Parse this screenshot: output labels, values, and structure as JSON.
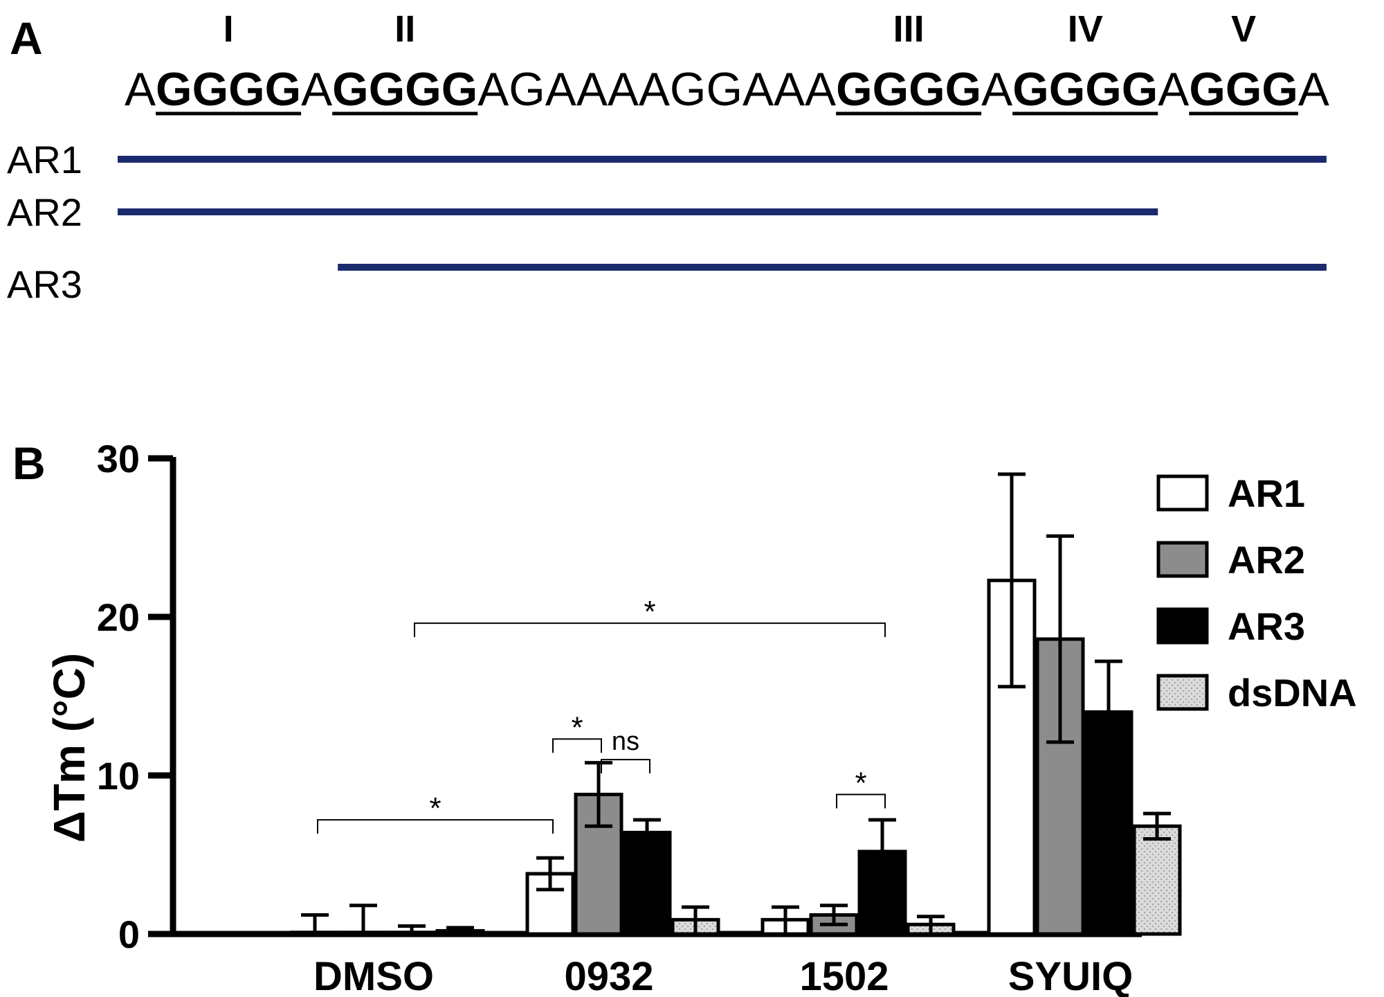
{
  "panel_a": {
    "label": "A",
    "roman_labels": [
      "I",
      "II",
      "III",
      "IV",
      "V"
    ],
    "sequence_segments": [
      {
        "text": "A",
        "bold": false
      },
      {
        "text": "GGGG",
        "bold": true
      },
      {
        "text": "A",
        "bold": false
      },
      {
        "text": "GGGG",
        "bold": true
      },
      {
        "text": "AGAAAAGGAAA",
        "bold": false
      },
      {
        "text": "GGGG",
        "bold": true
      },
      {
        "text": "A",
        "bold": false
      },
      {
        "text": "GGGG",
        "bold": true
      },
      {
        "text": "A",
        "bold": false
      },
      {
        "text": "GGG",
        "bold": true
      },
      {
        "text": "A",
        "bold": false
      }
    ],
    "constructs": [
      {
        "name": "AR1",
        "span": "I-V"
      },
      {
        "name": "AR2",
        "span": "I-IV"
      },
      {
        "name": "AR3",
        "span": "II-V"
      }
    ],
    "construct_color": "#1a2a6c"
  },
  "panel_b": {
    "label": "B"
  },
  "chart_data": {
    "type": "bar",
    "ylabel": "ΔTm (°C)",
    "xlabel": "",
    "ylim": [
      0,
      30
    ],
    "yticks": [
      "0",
      "10",
      "20",
      "30"
    ],
    "categories": [
      "DMSO",
      "0932",
      "1502",
      "SYUIQ"
    ],
    "series": [
      {
        "name": "AR1",
        "values": [
          0.1,
          3.8,
          0.9,
          22.3
        ],
        "errors": [
          1.1,
          1.0,
          0.8,
          6.7
        ],
        "fill": "#ffffff",
        "pattern": "none"
      },
      {
        "name": "AR2",
        "values": [
          0.1,
          8.8,
          1.2,
          18.6
        ],
        "errors": [
          1.7,
          2.0,
          0.6,
          6.5
        ],
        "fill": "#8c8c8c",
        "pattern": "none"
      },
      {
        "name": "AR3",
        "values": [
          0.1,
          6.4,
          5.2,
          14.0
        ],
        "errors": [
          0.4,
          0.8,
          2.0,
          3.2
        ],
        "fill": "#000000",
        "pattern": "none"
      },
      {
        "name": "dsDNA",
        "values": [
          0.2,
          0.9,
          0.6,
          6.8
        ],
        "errors": [
          0.2,
          0.8,
          0.5,
          0.8
        ],
        "fill": "#dcdcdc",
        "pattern": "dots"
      }
    ],
    "significance": [
      {
        "label": "*",
        "from": {
          "category": 0,
          "series": 0
        },
        "to": {
          "category": 1,
          "series": 0
        },
        "y": 7.2
      },
      {
        "label": "*",
        "from": {
          "category": 1,
          "series": 0
        },
        "to": {
          "category": 1,
          "series": 1
        },
        "y": 12.3
      },
      {
        "label": "ns",
        "from": {
          "category": 1,
          "series": 1
        },
        "to": {
          "category": 1,
          "series": 2
        },
        "y": 11.0
      },
      {
        "label": "*",
        "from": {
          "category": 0,
          "series": 2
        },
        "to": {
          "category": 2,
          "series": 2
        },
        "y": 19.6
      },
      {
        "label": "*",
        "from": {
          "category": 2,
          "series": 1
        },
        "to": {
          "category": 2,
          "series": 2
        },
        "y": 8.8
      }
    ],
    "legend_position": "right"
  }
}
